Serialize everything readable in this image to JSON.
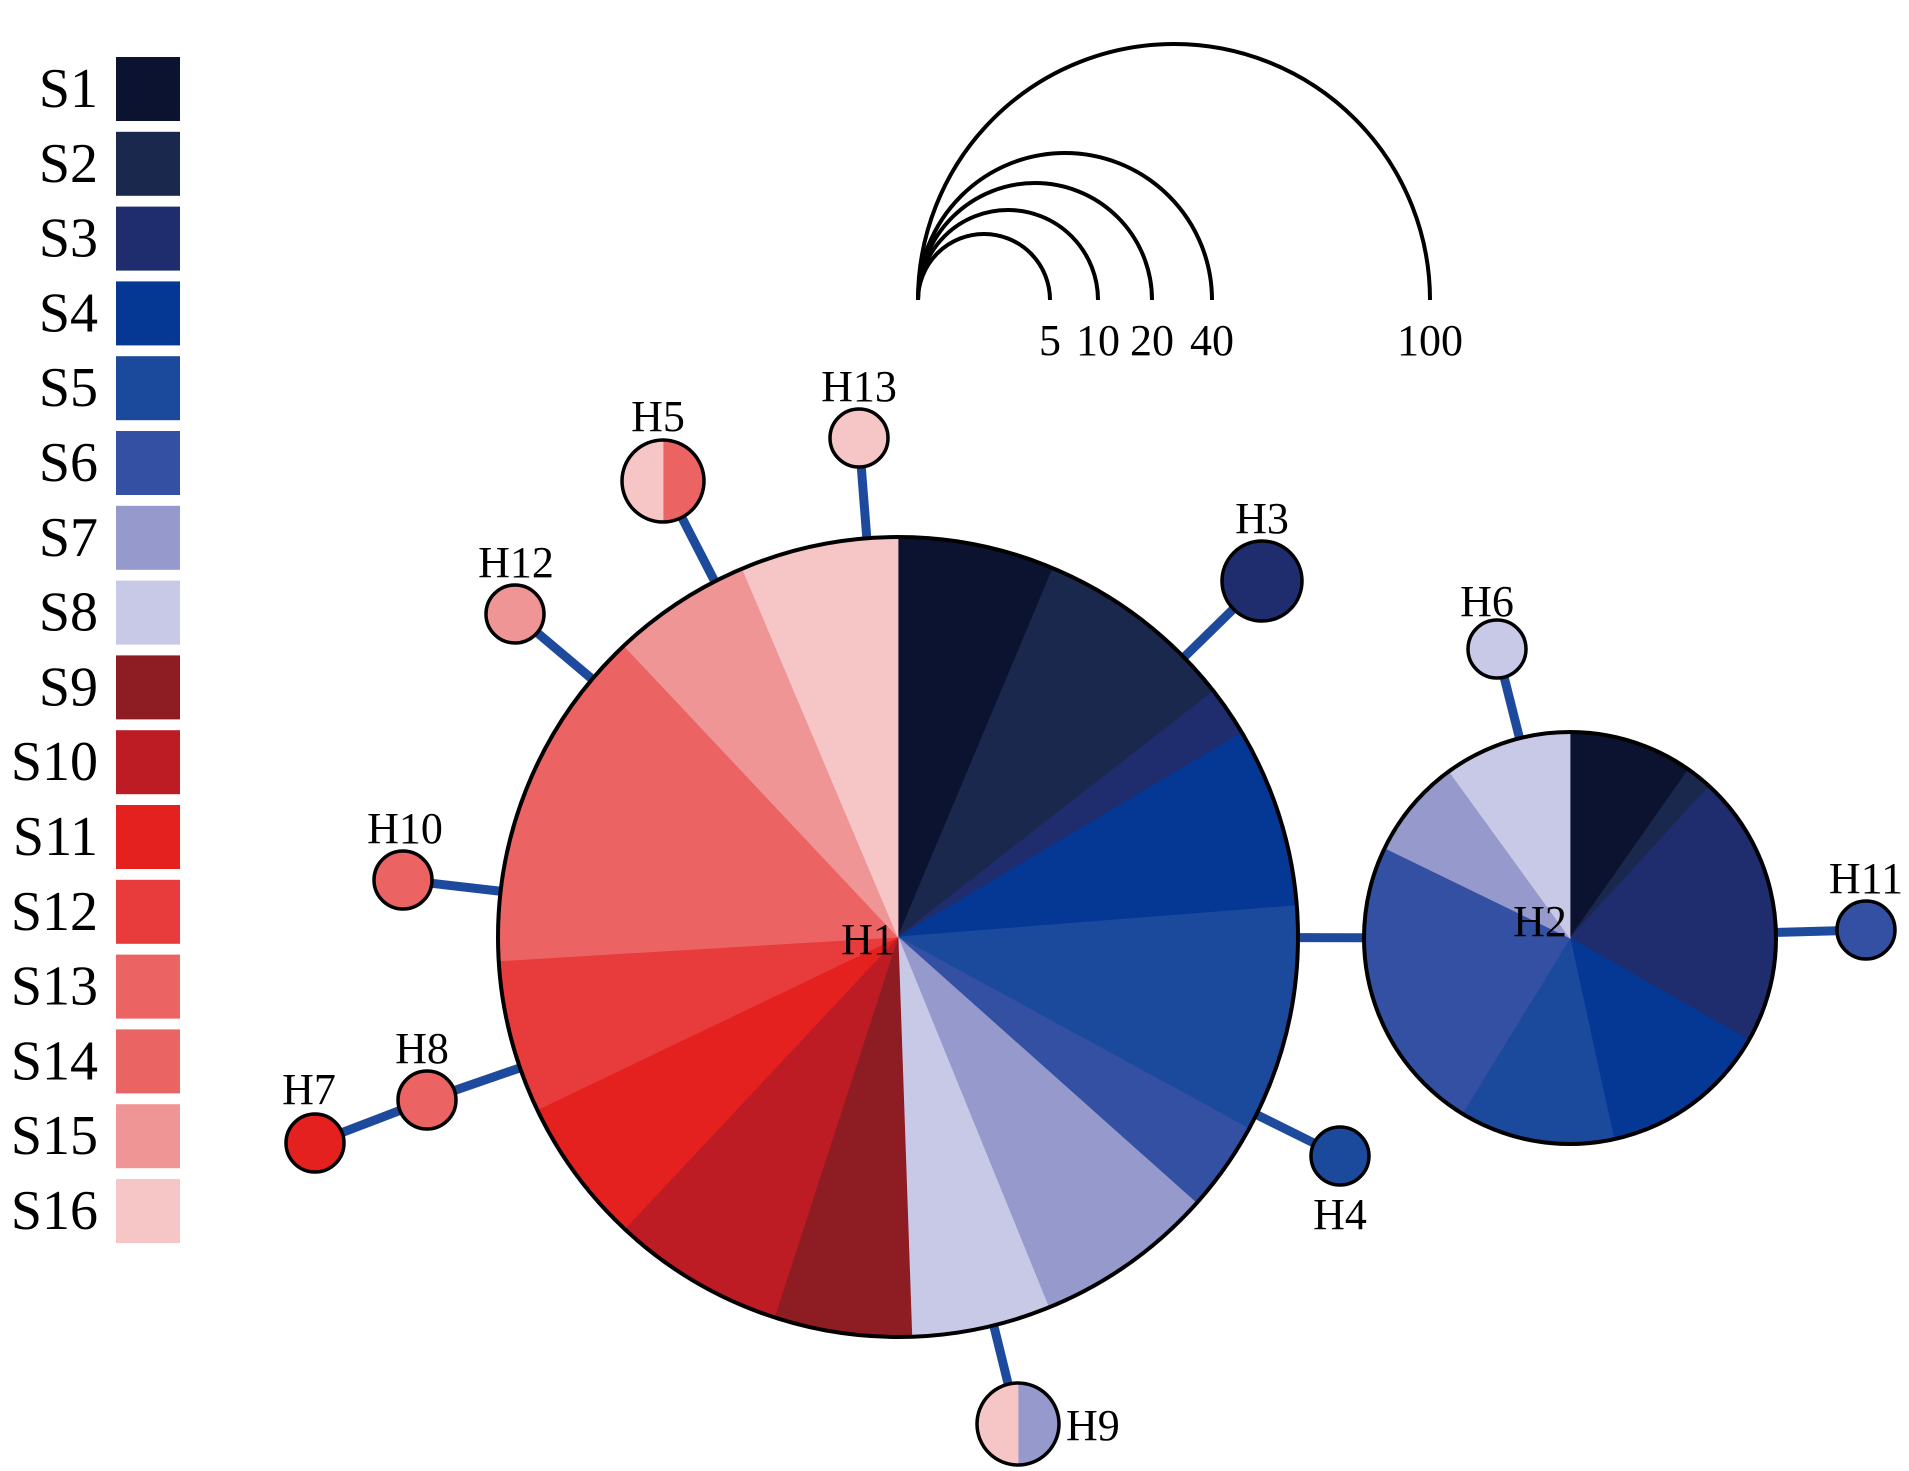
{
  "legend": {
    "items": [
      {
        "label": "S1",
        "color": "#0b1330"
      },
      {
        "label": "S2",
        "color": "#1b284d"
      },
      {
        "label": "S3",
        "color": "#1f2d6e"
      },
      {
        "label": "S4",
        "color": "#053895"
      },
      {
        "label": "S5",
        "color": "#1b4a9d"
      },
      {
        "label": "S6",
        "color": "#3450a3"
      },
      {
        "label": "S7",
        "color": "#9599cb"
      },
      {
        "label": "S8",
        "color": "#c8c9e6"
      },
      {
        "label": "S9",
        "color": "#8d1c23"
      },
      {
        "label": "S10",
        "color": "#be1c24"
      },
      {
        "label": "S11",
        "color": "#e5211f"
      },
      {
        "label": "S12",
        "color": "#e73c3b"
      },
      {
        "label": "S13",
        "color": "#eb6463"
      },
      {
        "label": "S14",
        "color": "#eb6464"
      },
      {
        "label": "S15",
        "color": "#f09596"
      },
      {
        "label": "S16",
        "color": "#f6c6c7"
      }
    ]
  },
  "scale": {
    "labels": [
      "5",
      "10",
      "20",
      "40",
      "100"
    ]
  },
  "colors": {
    "link": "#1e4a9e",
    "outline": "#000000"
  },
  "haplotypes": [
    {
      "label": "H1",
      "samples": [
        {
          "s": "S1",
          "f": 0.0633
        },
        {
          "s": "S2",
          "f": 0.0813
        },
        {
          "s": "S3",
          "f": 0.0201
        },
        {
          "s": "S4",
          "f": 0.0728
        },
        {
          "s": "S5",
          "f": 0.0921
        },
        {
          "s": "S6",
          "f": 0.0363
        },
        {
          "s": "S7",
          "f": 0.0726
        },
        {
          "s": "S8",
          "f": 0.056
        },
        {
          "s": "S9",
          "f": 0.0555
        },
        {
          "s": "S10",
          "f": 0.0698
        },
        {
          "s": "S11",
          "f": 0.0591
        },
        {
          "s": "S12",
          "f": 0.0616
        },
        {
          "s": "S13",
          "f": 0.1394
        },
        {
          "s": "S15",
          "f": 0.0565
        },
        {
          "s": "S16",
          "f": 0.0636
        }
      ]
    },
    {
      "label": "H2",
      "samples": [
        {
          "s": "S1",
          "f": 0.0975
        },
        {
          "s": "S2",
          "f": 0.0205
        },
        {
          "s": "S3",
          "f": 0.2147
        },
        {
          "s": "S4",
          "f": 0.1331
        },
        {
          "s": "S5",
          "f": 0.1218
        },
        {
          "s": "S6",
          "f": 0.2344
        },
        {
          "s": "S7",
          "f": 0.0781
        },
        {
          "s": "S8",
          "f": 0.0999
        }
      ]
    },
    {
      "label": "H3",
      "samples": [
        {
          "s": "S3",
          "f": 1
        }
      ]
    },
    {
      "label": "H4",
      "samples": [
        {
          "s": "S5",
          "f": 1
        }
      ]
    },
    {
      "label": "H5",
      "samples": [
        {
          "s": "S13",
          "f": 0.5
        },
        {
          "s": "S16",
          "f": 0.5
        }
      ]
    },
    {
      "label": "H6",
      "samples": [
        {
          "s": "S8",
          "f": 1
        }
      ]
    },
    {
      "label": "H7",
      "samples": [
        {
          "s": "S11",
          "f": 1
        }
      ]
    },
    {
      "label": "H8",
      "samples": [
        {
          "s": "S13",
          "f": 1
        }
      ]
    },
    {
      "label": "H9",
      "samples": [
        {
          "s": "S7",
          "f": 0.5
        },
        {
          "s": "S16",
          "f": 0.5
        }
      ]
    },
    {
      "label": "H10",
      "samples": [
        {
          "s": "S13",
          "f": 1
        }
      ]
    },
    {
      "label": "H11",
      "samples": [
        {
          "s": "S6",
          "f": 1
        }
      ]
    },
    {
      "label": "H12",
      "samples": [
        {
          "s": "S15",
          "f": 1
        }
      ]
    },
    {
      "label": "H13",
      "samples": [
        {
          "s": "S16",
          "f": 1
        }
      ]
    }
  ],
  "links": [
    {
      "from": "H1",
      "to": "H2"
    },
    {
      "from": "H1",
      "to": "H3"
    },
    {
      "from": "H1",
      "to": "H4"
    },
    {
      "from": "H1",
      "to": "H5"
    },
    {
      "from": "H1",
      "to": "H8"
    },
    {
      "from": "H8",
      "to": "H7"
    },
    {
      "from": "H1",
      "to": "H9"
    },
    {
      "from": "H1",
      "to": "H10"
    },
    {
      "from": "H1",
      "to": "H12"
    },
    {
      "from": "H1",
      "to": "H13"
    },
    {
      "from": "H2",
      "to": "H6"
    },
    {
      "from": "H2",
      "to": "H11"
    }
  ]
}
